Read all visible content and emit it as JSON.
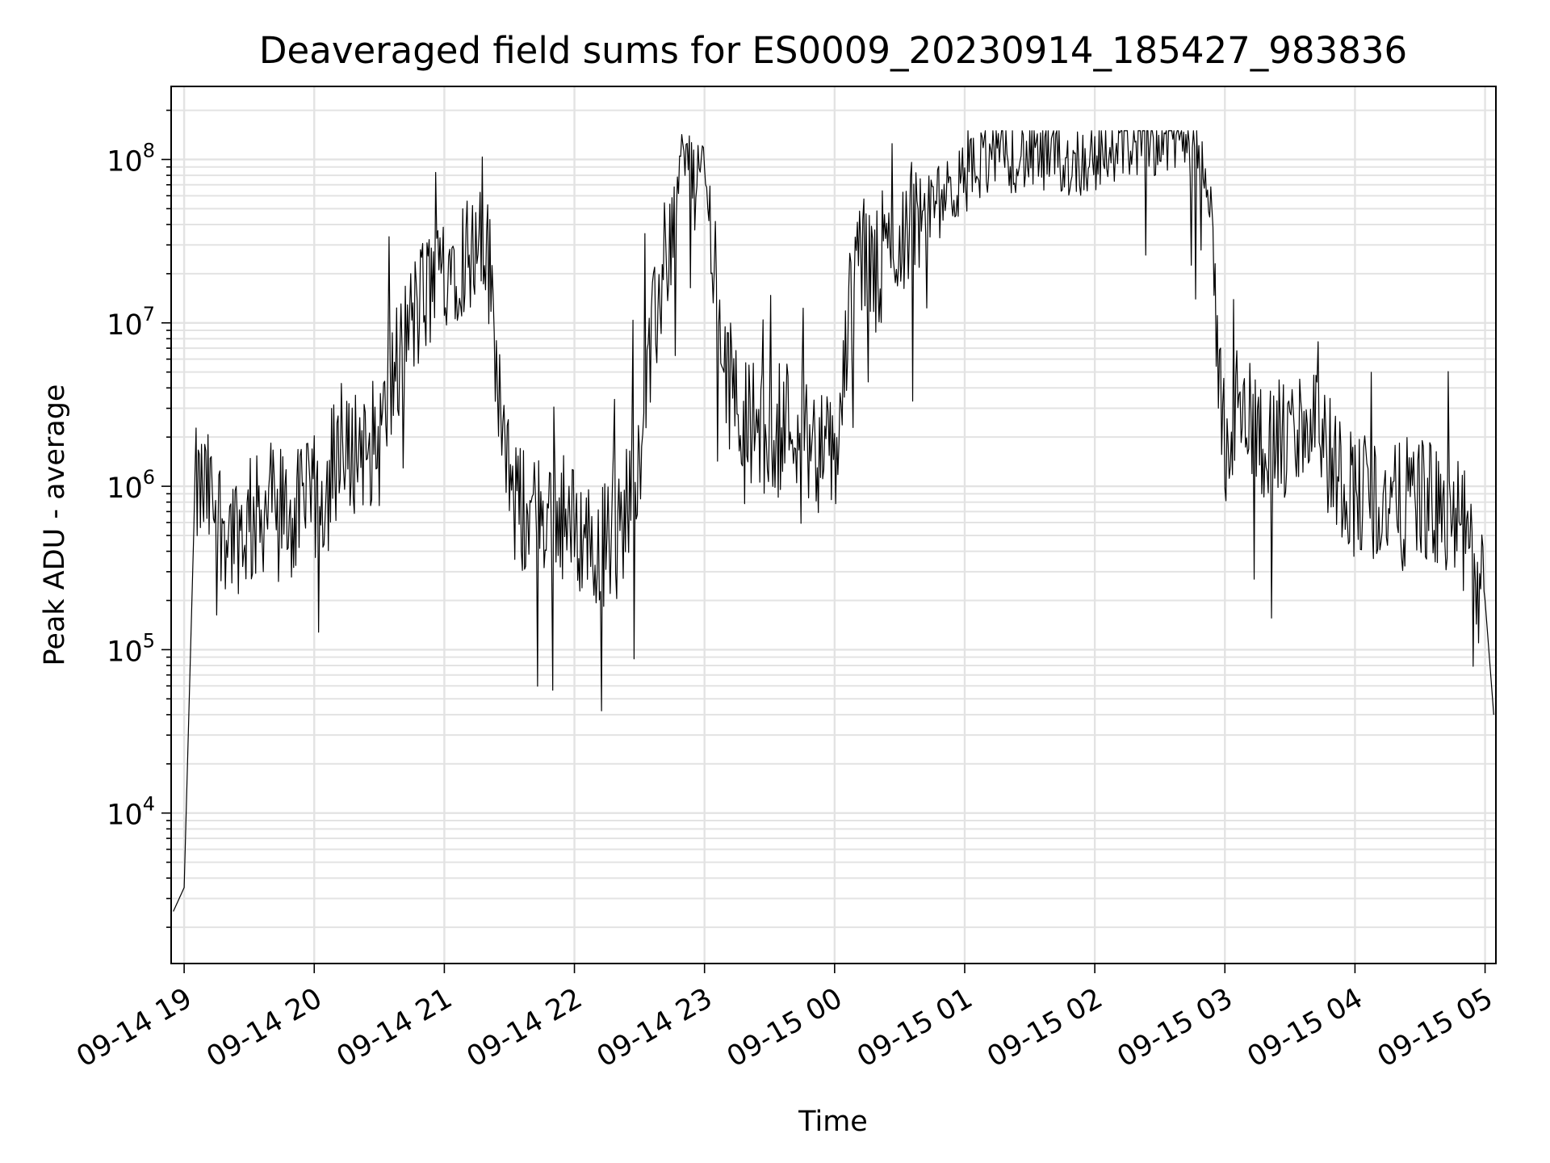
{
  "chart_data": {
    "type": "line",
    "title": "Deaveraged field sums for ES0009_20230914_185427_983836",
    "xlabel": "Time",
    "ylabel": "Peak ADU - average",
    "x_ticks": [
      "09-14 19",
      "09-14 20",
      "09-14 21",
      "09-14 22",
      "09-14 23",
      "09-15 00",
      "09-15 01",
      "09-15 02",
      "09-15 03",
      "09-15 04",
      "09-15 05"
    ],
    "y_ticks": [
      {
        "base": "10",
        "exp": "4",
        "value": 10000
      },
      {
        "base": "10",
        "exp": "5",
        "value": 100000
      },
      {
        "base": "10",
        "exp": "6",
        "value": 1000000
      },
      {
        "base": "10",
        "exp": "7",
        "value": 10000000
      },
      {
        "base": "10",
        "exp": "8",
        "value": 100000000
      }
    ],
    "y_scale": "log",
    "xlim": [
      "2023-09-14 18:54",
      "2023-09-15 05:05"
    ],
    "ylim": [
      1200,
      280000000
    ],
    "grid": true,
    "line_color": "#000000",
    "grid_color": "#e3e3e3",
    "series": [
      {
        "x": [
          "2023-09-14 18:55",
          "2023-09-14 19:00",
          "2023-09-14 19:05",
          "2023-09-14 19:10",
          "2023-09-14 19:20",
          "2023-09-14 19:30",
          "2023-09-14 19:40",
          "2023-09-14 19:50",
          "2023-09-14 20:00",
          "2023-09-14 20:10",
          "2023-09-14 20:20",
          "2023-09-14 20:30",
          "2023-09-14 20:40",
          "2023-09-14 20:50",
          "2023-09-14 21:00",
          "2023-09-14 21:10",
          "2023-09-14 21:20",
          "2023-09-14 21:30",
          "2023-09-14 21:40",
          "2023-09-14 21:50",
          "2023-09-14 22:00",
          "2023-09-14 22:10",
          "2023-09-14 22:20",
          "2023-09-14 22:30",
          "2023-09-14 22:40",
          "2023-09-14 22:50",
          "2023-09-14 23:00",
          "2023-09-14 23:10",
          "2023-09-14 23:20",
          "2023-09-14 23:30",
          "2023-09-14 23:40",
          "2023-09-14 23:50",
          "2023-09-15 00:00",
          "2023-09-15 00:10",
          "2023-09-15 00:20",
          "2023-09-15 00:30",
          "2023-09-15 00:40",
          "2023-09-15 00:50",
          "2023-09-15 01:00",
          "2023-09-15 01:10",
          "2023-09-15 01:20",
          "2023-09-15 01:30",
          "2023-09-15 01:40",
          "2023-09-15 01:50",
          "2023-09-15 02:00",
          "2023-09-15 02:10",
          "2023-09-15 02:20",
          "2023-09-15 02:30",
          "2023-09-15 02:40",
          "2023-09-15 02:50",
          "2023-09-15 03:00",
          "2023-09-15 03:10",
          "2023-09-15 03:20",
          "2023-09-15 03:30",
          "2023-09-15 03:40",
          "2023-09-15 03:50",
          "2023-09-15 04:00",
          "2023-09-15 04:10",
          "2023-09-15 04:20",
          "2023-09-15 04:30",
          "2023-09-15 04:40",
          "2023-09-15 04:50",
          "2023-09-15 05:00",
          "2023-09-15 05:04"
        ],
        "y": [
          2500,
          3500,
          1000000,
          1000000,
          600000,
          600000,
          900000,
          700000,
          900000,
          1200000,
          2000000,
          2000000,
          8000000,
          15000000,
          25000000,
          30000000,
          30000000,
          900000,
          700000,
          800000,
          600000,
          500000,
          500000,
          2000000,
          20000000,
          100000000,
          90000000,
          5000000,
          3000000,
          2000000,
          3000000,
          2000000,
          1500000,
          30000000,
          20000000,
          40000000,
          50000000,
          60000000,
          80000000,
          110000000,
          110000000,
          110000000,
          105000000,
          100000000,
          110000000,
          130000000,
          140000000,
          140000000,
          140000000,
          130000000,
          2000000,
          3000000,
          2000000,
          2000000,
          3000000,
          1500000,
          1000000,
          900000,
          800000,
          1000000,
          700000,
          600000,
          200000,
          40000
        ]
      }
    ]
  }
}
